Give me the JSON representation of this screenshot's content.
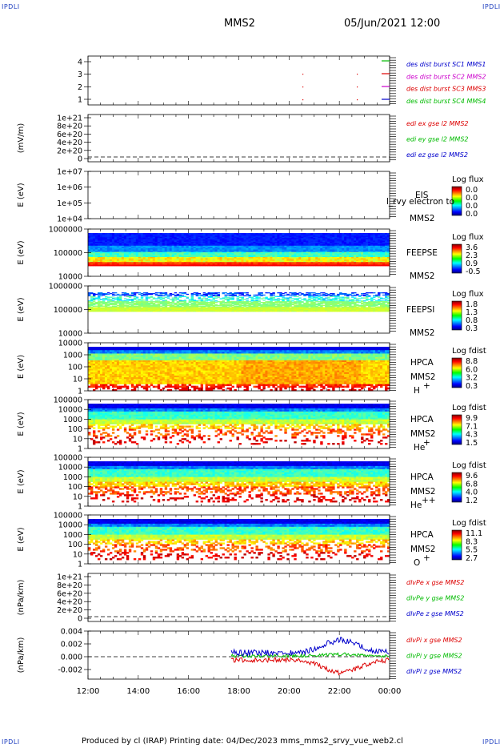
{
  "corner_labels": {
    "tl": "IPDLI",
    "tr": "IPDLI",
    "bl": "IPDLI",
    "br": "IPDLI"
  },
  "header": {
    "spacecraft": "MMS2",
    "datetime": "05/Jun/2021 12:00"
  },
  "footer": "Produced by cl (IRAP)   Printing date: 04/Dec/2023   mms_mms2_srvy_vue_web2.cl",
  "colors": {
    "mms1": "#0000cc",
    "mms2": "#cc00cc",
    "mms3": "#dd0000",
    "mms4": "#00bb00",
    "x": "#dd0000",
    "y": "#00bb00",
    "z": "#0000cc"
  },
  "chart_data": {
    "type": "multi-panel time series / spectrogram",
    "x_axis": {
      "ticks": [
        "12:00",
        "14:00",
        "16:00",
        "18:00",
        "20:00",
        "22:00",
        "00:00"
      ],
      "range": [
        "12:00",
        "00:00"
      ]
    },
    "panels": [
      {
        "id": "burst",
        "type": "scatter",
        "yticks": [
          "4",
          "3",
          "2",
          "1"
        ],
        "ylim": [
          0.5,
          4.5
        ],
        "legend": [
          {
            "text": "des dist burst SC1 MMS1",
            "color": "#0000cc"
          },
          {
            "text": "des dist burst SC2 MMS2",
            "color": "#cc00cc"
          },
          {
            "text": "des dist burst SC3 MMS3",
            "color": "#dd0000"
          },
          {
            "text": "des dist burst SC4 MMS4",
            "color": "#00bb00"
          }
        ]
      },
      {
        "id": "edi",
        "type": "line",
        "ylabel": "(mV/m)",
        "yticks": [
          "1e+21",
          "8e+20",
          "6e+20",
          "4e+20",
          "2e+20",
          "0"
        ],
        "ylim": [
          0,
          1e+21
        ],
        "legend": [
          {
            "text": "edi ex gse l2 MMS2",
            "color": "#dd0000"
          },
          {
            "text": "edi ey gse l2 MMS2",
            "color": "#00bb00"
          },
          {
            "text": "edi ez gse l2 MMS2",
            "color": "#0000cc"
          }
        ]
      },
      {
        "id": "eis",
        "type": "heatmap",
        "ylabel": "E (eV)",
        "yticks": [
          "1e+07",
          "1e+06",
          "1e+05",
          "1e+04"
        ],
        "ylim": [
          10000.0,
          10000000.0
        ],
        "log_y": true,
        "labels": [
          "EIS",
          "MMS2"
        ],
        "overlay": "l_rvy electron to",
        "colorbar": {
          "title": "Log flux",
          "ticks": [
            "0.0",
            "0.0",
            "0.0",
            "0.0"
          ]
        }
      },
      {
        "id": "feepse",
        "type": "heatmap",
        "ylabel": "E (eV)",
        "yticks": [
          "1000000",
          "100000",
          "10000"
        ],
        "ylim": [
          10000,
          1000000
        ],
        "log_y": true,
        "labels": [
          "FEEPSE",
          "MMS2"
        ],
        "colorbar": {
          "title": "Log flux",
          "ticks": [
            "3.6",
            "2.3",
            "0.9",
            "-0.5"
          ]
        }
      },
      {
        "id": "feepsi",
        "type": "heatmap",
        "ylabel": "E (eV)",
        "yticks": [
          "1000000",
          "100000",
          "10000"
        ],
        "ylim": [
          10000,
          1000000
        ],
        "log_y": true,
        "labels": [
          "FEEPSI",
          "MMS2"
        ],
        "colorbar": {
          "title": "Log flux",
          "ticks": [
            "1.8",
            "1.3",
            "0.8",
            "0.3"
          ]
        }
      },
      {
        "id": "hpca_h",
        "type": "heatmap",
        "ylabel": "E (eV)",
        "yticks": [
          "10000",
          "1000",
          "100",
          "10",
          "1"
        ],
        "ylim": [
          1,
          10000
        ],
        "log_y": true,
        "labels": [
          "HPCA",
          "MMS2",
          "H",
          "+"
        ],
        "colorbar": {
          "title": "Log fdist",
          "ticks": [
            "8.8",
            "6.0",
            "3.2",
            "0.3"
          ]
        }
      },
      {
        "id": "hpca_he",
        "type": "heatmap",
        "ylabel": "E (eV)",
        "yticks": [
          "100000",
          "10000",
          "1000",
          "100",
          "10",
          "1"
        ],
        "ylim": [
          1,
          100000
        ],
        "log_y": true,
        "labels": [
          "HPCA",
          "MMS2",
          "He",
          "+"
        ],
        "colorbar": {
          "title": "Log fdist",
          "ticks": [
            "9.9",
            "7.1",
            "4.3",
            "1.5"
          ]
        }
      },
      {
        "id": "hpca_hepp",
        "type": "heatmap",
        "ylabel": "E (eV)",
        "yticks": [
          "100000",
          "10000",
          "1000",
          "100",
          "10",
          "1"
        ],
        "ylim": [
          1,
          100000
        ],
        "log_y": true,
        "labels": [
          "HPCA",
          "MMS2",
          "He",
          "++"
        ],
        "colorbar": {
          "title": "Log fdist",
          "ticks": [
            "9.6",
            "6.8",
            "4.0",
            "1.2"
          ]
        }
      },
      {
        "id": "hpca_o",
        "type": "heatmap",
        "ylabel": "E (eV)",
        "yticks": [
          "100000",
          "10000",
          "1000",
          "100",
          "10",
          "1"
        ],
        "ylim": [
          1,
          100000
        ],
        "log_y": true,
        "labels": [
          "HPCA",
          "MMS2",
          "O",
          "+"
        ],
        "colorbar": {
          "title": "Log fdist",
          "ticks": [
            "11.1",
            "8.3",
            "5.5",
            "2.7"
          ]
        }
      },
      {
        "id": "divpe",
        "type": "line",
        "ylabel": "(nPa/km)",
        "yticks": [
          "1e+21",
          "8e+20",
          "6e+20",
          "4e+20",
          "2e+20",
          "0"
        ],
        "ylim": [
          0,
          1e+21
        ],
        "legend": [
          {
            "text": "dlvPe x gse MMS2",
            "color": "#dd0000"
          },
          {
            "text": "dlvPe y gse MMS2",
            "color": "#00bb00"
          },
          {
            "text": "dlvPe z gse MMS2",
            "color": "#0000cc"
          }
        ]
      },
      {
        "id": "divpi",
        "type": "line",
        "ylabel": "(nPa/km)",
        "yticks": [
          "0.004",
          "0.002",
          "0.000",
          "-0.002"
        ],
        "ylim": [
          -0.0035,
          0.004
        ],
        "legend": [
          {
            "text": "dlvPi x gse MMS2",
            "color": "#dd0000"
          },
          {
            "text": "dlvPi y gse MMS2",
            "color": "#00bb00"
          },
          {
            "text": "dlvPi z gse MMS2",
            "color": "#0000cc"
          }
        ]
      }
    ]
  }
}
